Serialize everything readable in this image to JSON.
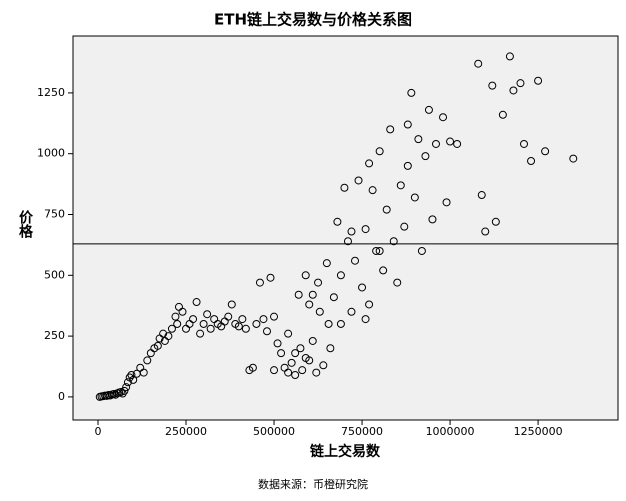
{
  "chart_data": {
    "type": "scatter",
    "title": "ETH链上交易数与价格关系图",
    "x_label": "链上交易数",
    "y_label": "价格",
    "source": "数据来源：币橙研究院",
    "xlim": [
      -71000,
      1477000
    ],
    "ylim": [
      -95,
      1484
    ],
    "xticks": [
      0,
      250000,
      500000,
      750000,
      1000000,
      1250000
    ],
    "yticks": [
      0,
      250,
      500,
      750,
      1000,
      1250
    ],
    "reference_line": 629,
    "color": "#000000",
    "x": [
      5000,
      10000,
      15000,
      20000,
      25000,
      30000,
      35000,
      40000,
      45000,
      50000,
      55000,
      60000,
      65000,
      70000,
      75000,
      80000,
      85000,
      90000,
      95000,
      100000,
      110000,
      120000,
      130000,
      140000,
      150000,
      160000,
      170000,
      175000,
      185000,
      190000,
      200000,
      210000,
      220000,
      225000,
      230000,
      240000,
      250000,
      260000,
      270000,
      280000,
      290000,
      300000,
      310000,
      320000,
      330000,
      340000,
      350000,
      360000,
      370000,
      380000,
      390000,
      400000,
      410000,
      420000,
      430000,
      440000,
      450000,
      460000,
      470000,
      480000,
      490000,
      500000,
      510000,
      520000,
      530000,
      540000,
      550000,
      560000,
      570000,
      575000,
      580000,
      590000,
      600000,
      610000,
      620000,
      625000,
      630000,
      640000,
      650000,
      655000,
      660000,
      670000,
      680000,
      690000,
      700000,
      710000,
      720000,
      730000,
      740000,
      750000,
      760000,
      770000,
      780000,
      790000,
      800000,
      810000,
      820000,
      830000,
      840000,
      850000,
      860000,
      870000,
      880000,
      890000,
      900000,
      910000,
      920000,
      930000,
      940000,
      950000,
      960000,
      980000,
      990000,
      1000000,
      1020000,
      1080000,
      1090000,
      1100000,
      1120000,
      1130000,
      1150000,
      1170000,
      1180000,
      1200000,
      1210000,
      1230000,
      1250000,
      1270000,
      1350000,
      610000,
      590000,
      720000,
      800000,
      690000,
      760000,
      540000,
      500000,
      560000,
      600000,
      880000,
      770000
    ],
    "values": [
      0,
      2,
      3,
      5,
      4,
      8,
      6,
      10,
      12,
      9,
      15,
      18,
      20,
      14,
      25,
      40,
      60,
      80,
      90,
      70,
      95,
      120,
      100,
      150,
      180,
      200,
      210,
      240,
      260,
      230,
      250,
      280,
      330,
      300,
      370,
      350,
      280,
      300,
      320,
      390,
      260,
      300,
      340,
      280,
      320,
      300,
      290,
      310,
      330,
      380,
      300,
      290,
      320,
      280,
      110,
      120,
      300,
      470,
      320,
      270,
      490,
      330,
      220,
      180,
      120,
      260,
      140,
      90,
      420,
      200,
      110,
      160,
      380,
      230,
      100,
      470,
      350,
      130,
      550,
      300,
      200,
      410,
      720,
      500,
      860,
      640,
      350,
      560,
      890,
      450,
      690,
      380,
      850,
      600,
      1010,
      520,
      770,
      1100,
      640,
      470,
      870,
      700,
      1120,
      1250,
      820,
      1060,
      600,
      990,
      1180,
      730,
      1040,
      1150,
      800,
      1050,
      1040,
      1370,
      830,
      680,
      1280,
      720,
      1160,
      1400,
      1260,
      1290,
      1040,
      970,
      1300,
      1010,
      980,
      420,
      500,
      680,
      600,
      300,
      320,
      100,
      110,
      180,
      150,
      950,
      960
    ]
  }
}
